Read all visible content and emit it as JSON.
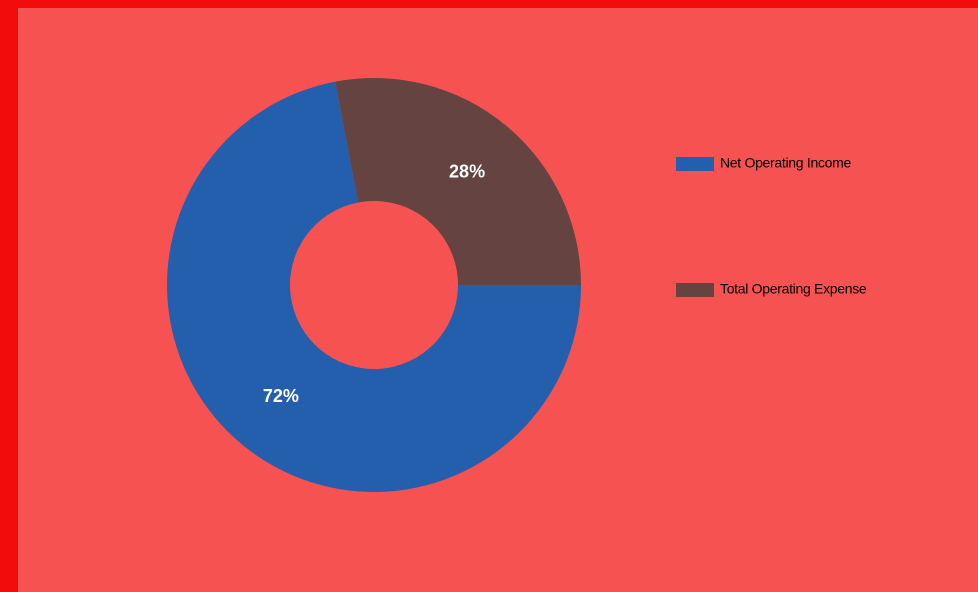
{
  "chart_data": {
    "type": "donut",
    "categories": [
      "Net Operating Income",
      "Total Operating Expense"
    ],
    "values": [
      72,
      28
    ],
    "value_labels": [
      "72%",
      "28%"
    ],
    "colors": [
      "#245fae",
      "#654340"
    ],
    "legend": "right"
  }
}
